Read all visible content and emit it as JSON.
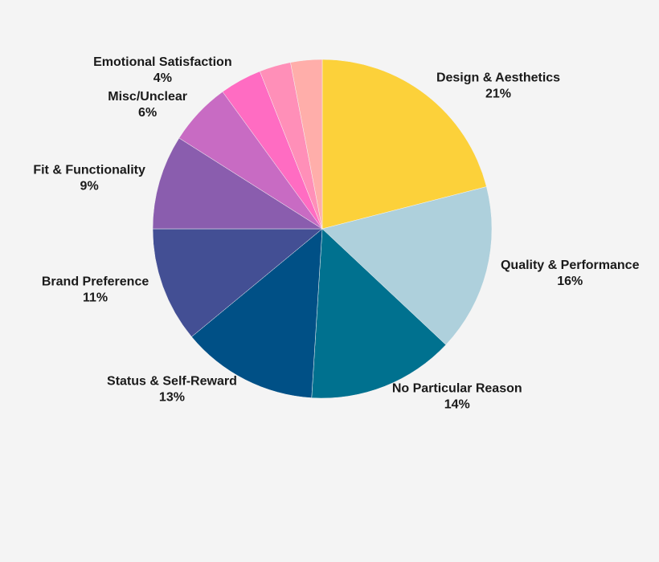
{
  "chart_data": {
    "type": "pie",
    "categories": [
      "Design & Aesthetics",
      "Quality & Performance",
      "No Particular Reason",
      "Status & Self-Reward",
      "Brand Preference",
      "Fit & Functionality",
      "Misc/Unclear",
      "Emotional Satisfaction",
      null,
      null
    ],
    "values": [
      21,
      16,
      14,
      13,
      11,
      9,
      6,
      4,
      3,
      3
    ],
    "value_labels": [
      "21%",
      "16%",
      "14%",
      "13%",
      "11%",
      "9%",
      "6%",
      "4%",
      null,
      null
    ],
    "colors": [
      "#fcd13a",
      "#aed0dc",
      "#00718f",
      "#005086",
      "#434f94",
      "#8a5dae",
      "#c86bc3",
      "#ff6cc2",
      "#ff8fb8",
      "#ffaeaa"
    ]
  }
}
